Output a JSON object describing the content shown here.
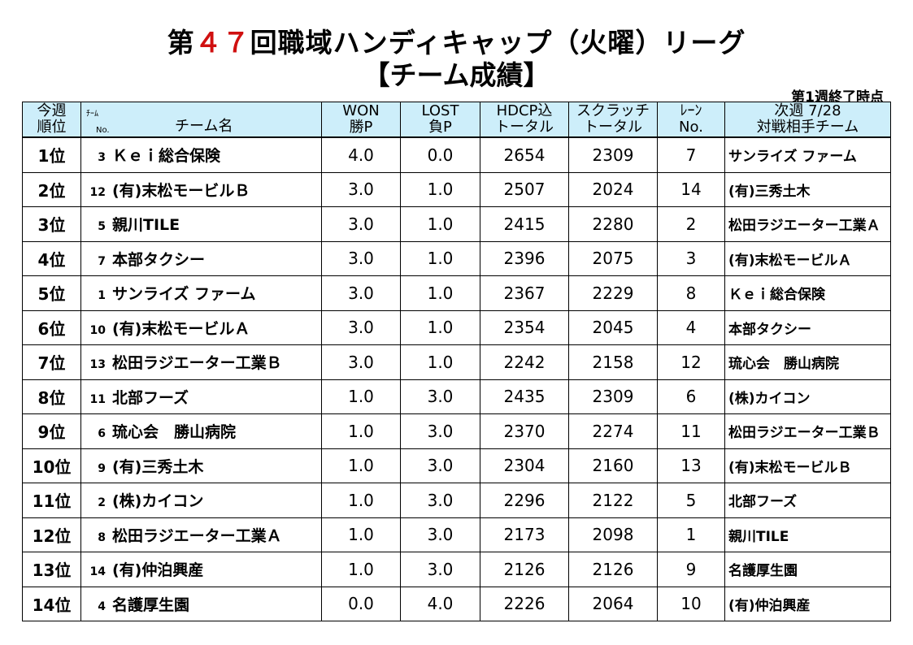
{
  "title": {
    "prefix": "第",
    "number": "４７",
    "suffix": "回職域ハンディキャップ（火曜）リーグ"
  },
  "subtitle": "【チーム成績】",
  "status": "第1週終了時点",
  "header": {
    "rank_l1": "今週",
    "rank_l2": "順位",
    "team_small1": "ﾁｰﾑ",
    "team_small2": "No.",
    "team_main": "チーム名",
    "won_l1": "WON",
    "won_l2": "勝P",
    "lost_l1": "LOST",
    "lost_l2": "負P",
    "hdcp_l1": "HDCP込",
    "hdcp_l2": "トータル",
    "scratch_l1": "スクラッチ",
    "scratch_l2": "トータル",
    "lane_l1": "ﾚｰﾝ",
    "lane_l2": "No.",
    "next_l1": "次週 7/28",
    "next_l2": "対戦相手チーム"
  },
  "rows": [
    {
      "rank": "1位",
      "no": "3",
      "team": "Ｋｅｉ総合保険",
      "won": "4.0",
      "lost": "0.0",
      "hdcp": "2654",
      "scratch": "2309",
      "lane": "7",
      "next": "サンライズ ファーム"
    },
    {
      "rank": "2位",
      "no": "12",
      "team": "(有)末松モービルＢ",
      "won": "3.0",
      "lost": "1.0",
      "hdcp": "2507",
      "scratch": "2024",
      "lane": "14",
      "next": "(有)三秀土木"
    },
    {
      "rank": "3位",
      "no": "5",
      "team": "親川TILE",
      "won": "3.0",
      "lost": "1.0",
      "hdcp": "2415",
      "scratch": "2280",
      "lane": "2",
      "next": "松田ラジエーター工業Ａ"
    },
    {
      "rank": "4位",
      "no": "7",
      "team": "本部タクシー",
      "won": "3.0",
      "lost": "1.0",
      "hdcp": "2396",
      "scratch": "2075",
      "lane": "3",
      "next": "(有)末松モービルＡ"
    },
    {
      "rank": "5位",
      "no": "1",
      "team": "サンライズ ファーム",
      "won": "3.0",
      "lost": "1.0",
      "hdcp": "2367",
      "scratch": "2229",
      "lane": "8",
      "next": "Ｋｅｉ総合保険"
    },
    {
      "rank": "6位",
      "no": "10",
      "team": "(有)末松モービルＡ",
      "won": "3.0",
      "lost": "1.0",
      "hdcp": "2354",
      "scratch": "2045",
      "lane": "4",
      "next": "本部タクシー"
    },
    {
      "rank": "7位",
      "no": "13",
      "team": "松田ラジエーター工業Ｂ",
      "won": "3.0",
      "lost": "1.0",
      "hdcp": "2242",
      "scratch": "2158",
      "lane": "12",
      "next": "琉心会　勝山病院"
    },
    {
      "rank": "8位",
      "no": "11",
      "team": "北部フーズ",
      "won": "1.0",
      "lost": "3.0",
      "hdcp": "2435",
      "scratch": "2309",
      "lane": "6",
      "next": "(株)カイコン"
    },
    {
      "rank": "9位",
      "no": "6",
      "team": "琉心会　勝山病院",
      "won": "1.0",
      "lost": "3.0",
      "hdcp": "2370",
      "scratch": "2274",
      "lane": "11",
      "next": "松田ラジエーター工業Ｂ"
    },
    {
      "rank": "10位",
      "no": "9",
      "team": "(有)三秀土木",
      "won": "1.0",
      "lost": "3.0",
      "hdcp": "2304",
      "scratch": "2160",
      "lane": "13",
      "next": "(有)末松モービルＢ"
    },
    {
      "rank": "11位",
      "no": "2",
      "team": "(株)カイコン",
      "won": "1.0",
      "lost": "3.0",
      "hdcp": "2296",
      "scratch": "2122",
      "lane": "5",
      "next": "北部フーズ"
    },
    {
      "rank": "12位",
      "no": "8",
      "team": "松田ラジエーター工業Ａ",
      "won": "1.0",
      "lost": "3.0",
      "hdcp": "2173",
      "scratch": "2098",
      "lane": "1",
      "next": "親川TILE"
    },
    {
      "rank": "13位",
      "no": "14",
      "team": "(有)仲泊興産",
      "won": "1.0",
      "lost": "3.0",
      "hdcp": "2126",
      "scratch": "2126",
      "lane": "9",
      "next": "名護厚生園"
    },
    {
      "rank": "14位",
      "no": "4",
      "team": "名護厚生園",
      "won": "0.0",
      "lost": "4.0",
      "hdcp": "2226",
      "scratch": "2064",
      "lane": "10",
      "next": "(有)仲泊興産"
    }
  ]
}
